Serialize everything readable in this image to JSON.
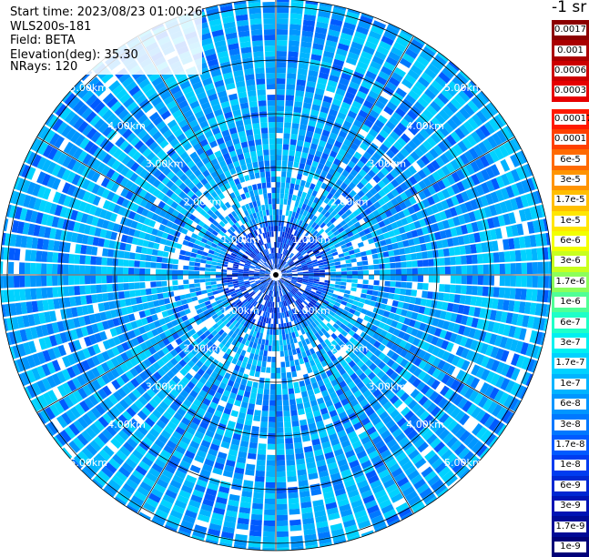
{
  "info": {
    "start_time": "Start time: 2023/08/23 01:00:26",
    "station": "WLS200s-181",
    "field": "Field: BETA",
    "elevation": "Elevation(deg): 35.30",
    "nrays": "NRays: 120"
  },
  "unit": "-1 sr",
  "range_rings": [
    "1.00km",
    "2.00km",
    "3.00km",
    "4.00km",
    "5.00km"
  ],
  "ray_count": 120,
  "colorbar": {
    "top_group": [
      {
        "label": "0.0017",
        "color": "#8b0000"
      },
      {
        "label": "0.001",
        "color": "#aa0000"
      },
      {
        "label": "0.0006",
        "color": "#cc0000"
      },
      {
        "label": "0.0003",
        "color": "#e60000"
      }
    ],
    "main_group": [
      {
        "label": "0.00017",
        "color": "#ff1a00"
      },
      {
        "label": "0.0001",
        "color": "#ff4000"
      },
      {
        "label": "6e-5",
        "color": "#ff6a00"
      },
      {
        "label": "3e-5",
        "color": "#ff9400"
      },
      {
        "label": "1.7e-5",
        "color": "#ffbe00"
      },
      {
        "label": "1e-5",
        "color": "#ffe600"
      },
      {
        "label": "6e-6",
        "color": "#f2ff00"
      },
      {
        "label": "3e-6",
        "color": "#c8ff1e"
      },
      {
        "label": "1.7e-6",
        "color": "#8cff5a"
      },
      {
        "label": "1e-6",
        "color": "#50ff96"
      },
      {
        "label": "6e-7",
        "color": "#1effc8"
      },
      {
        "label": "3e-7",
        "color": "#00f0f0"
      },
      {
        "label": "1.7e-7",
        "color": "#00d2ff"
      },
      {
        "label": "1e-7",
        "color": "#00b4ff"
      },
      {
        "label": "6e-8",
        "color": "#0096ff"
      },
      {
        "label": "3e-8",
        "color": "#0078ff"
      },
      {
        "label": "1.7e-8",
        "color": "#005aff"
      },
      {
        "label": "1e-8",
        "color": "#003cf0"
      },
      {
        "label": "6e-9",
        "color": "#0028d2"
      },
      {
        "label": "3e-9",
        "color": "#0014b4"
      },
      {
        "label": "1.7e-9",
        "color": "#000a96"
      },
      {
        "label": "1e-9",
        "color": "#000078"
      }
    ]
  }
}
